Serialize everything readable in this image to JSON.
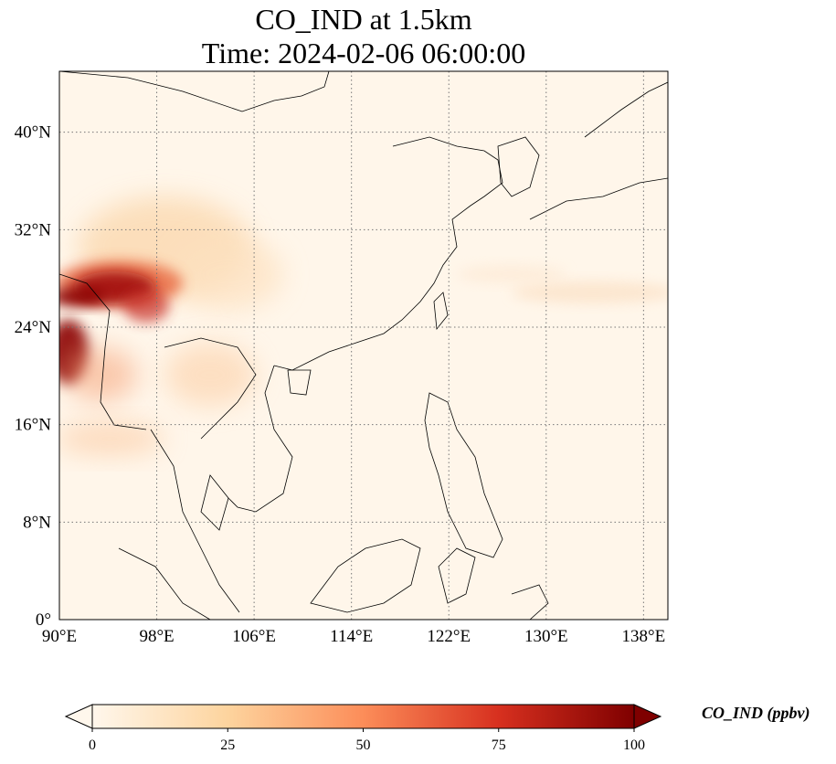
{
  "title": {
    "line1": "CO_IND at 1.5km",
    "line2": "Time: 2024-02-06 06:00:00"
  },
  "map": {
    "projection": "PlateCarree",
    "lon_range": [
      90,
      140
    ],
    "lat_range": [
      0,
      45
    ],
    "gridlines": "dotted",
    "lon_ticks": [
      {
        "value": 90,
        "label": "90°E"
      },
      {
        "value": 98,
        "label": "98°E"
      },
      {
        "value": 106,
        "label": "106°E"
      },
      {
        "value": 114,
        "label": "114°E"
      },
      {
        "value": 122,
        "label": "122°E"
      },
      {
        "value": 130,
        "label": "130°E"
      },
      {
        "value": 138,
        "label": "138°E"
      }
    ],
    "lat_ticks": [
      {
        "value": 0,
        "label": "0°"
      },
      {
        "value": 8,
        "label": "8°N"
      },
      {
        "value": 16,
        "label": "16°N"
      },
      {
        "value": 24,
        "label": "24°N"
      },
      {
        "value": 32,
        "label": "32°N"
      },
      {
        "value": 40,
        "label": "40°N"
      }
    ]
  },
  "colorbar": {
    "label": "CO_IND (ppbv)",
    "colormap": "OrRd",
    "range": [
      0,
      100
    ],
    "extend": "both",
    "colors": [
      "#fff7ec",
      "#fdd49e",
      "#fc8d59",
      "#d7301f",
      "#7f0000"
    ],
    "ticks": [
      {
        "value": 0,
        "label": "0"
      },
      {
        "value": 25,
        "label": "25"
      },
      {
        "value": 50,
        "label": "50"
      },
      {
        "value": 75,
        "label": "75"
      },
      {
        "value": 100,
        "label": "100"
      }
    ]
  }
}
